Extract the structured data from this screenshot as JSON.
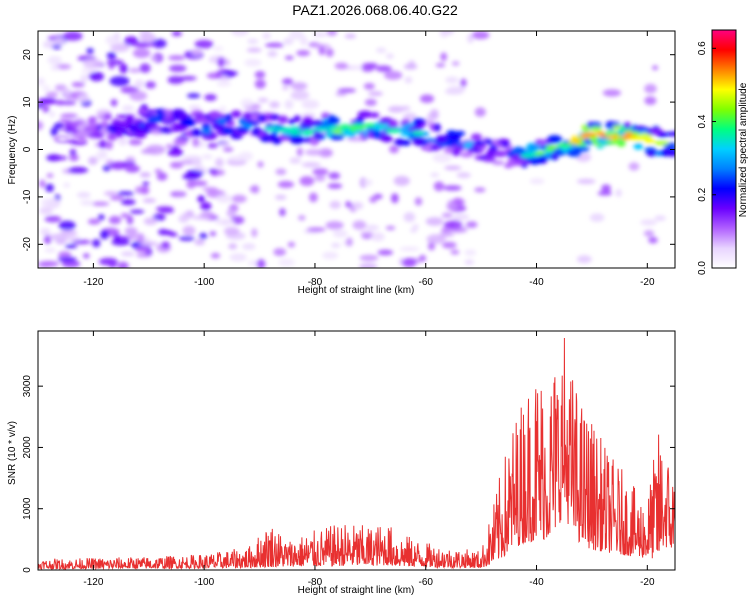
{
  "page": {
    "title": "PAZ1.2026.068.06.40.G22"
  },
  "chart_data": [
    {
      "type": "heatmap",
      "title": "PAZ1.2026.068.06.40.G22",
      "xlabel": "Height of straight line (km)",
      "ylabel": "Frequency (Hz)",
      "xlim": [
        -130,
        -15
      ],
      "ylim": [
        -25,
        25
      ],
      "x_ticks": [
        -120,
        -100,
        -80,
        -60,
        -40,
        -20
      ],
      "y_ticks": [
        -20,
        -10,
        0,
        10,
        20
      ],
      "colorbar": {
        "label": "Normalized spectral amplitude",
        "range": [
          0.0,
          0.65
        ],
        "ticks": [
          0.0,
          0.2,
          0.4,
          0.6
        ],
        "colormap": [
          "#ffffff",
          "#e8d4ff",
          "#b060ff",
          "#6a00ff",
          "#0000ff",
          "#0080ff",
          "#00d0ff",
          "#00ff80",
          "#80ff00",
          "#ffff00",
          "#ff8000",
          "#ff0000",
          "#ff0080"
        ]
      },
      "ridge": {
        "x": [
          -125,
          -115,
          -108,
          -100,
          -92,
          -85,
          -80,
          -75,
          -70,
          -65,
          -60,
          -55,
          -50,
          -45,
          -40,
          -35,
          -30,
          -25,
          -20,
          -15
        ],
        "freq": [
          4,
          5,
          6,
          5,
          5,
          4,
          4,
          4.5,
          5,
          4,
          3,
          2,
          0,
          -1,
          -1,
          1,
          3,
          3,
          2,
          1
        ],
        "amplitude": [
          0.15,
          0.22,
          0.3,
          0.32,
          0.3,
          0.38,
          0.35,
          0.45,
          0.4,
          0.36,
          0.34,
          0.3,
          0.32,
          0.3,
          0.4,
          0.45,
          0.62,
          0.6,
          0.55,
          0.35
        ]
      }
    },
    {
      "type": "line",
      "xlabel": "Height of straight line (km)",
      "ylabel": "SNR (10 * v/v)",
      "xlim": [
        -130,
        -15
      ],
      "ylim": [
        0,
        3900
      ],
      "x_ticks": [
        -120,
        -100,
        -80,
        -60,
        -40,
        -20
      ],
      "y_ticks": [
        0,
        1000,
        2000,
        3000
      ],
      "line_color": "#e83030",
      "envelope": {
        "x": [
          -130,
          -120,
          -110,
          -100,
          -92,
          -88,
          -85,
          -80,
          -75,
          -70,
          -67,
          -65,
          -60,
          -55,
          -50,
          -48,
          -46,
          -44,
          -42,
          -40,
          -38,
          -36,
          -35,
          -34,
          -32,
          -30,
          -28,
          -26,
          -24,
          -22,
          -20,
          -18,
          -17,
          -16,
          -15
        ],
        "base": [
          60,
          70,
          80,
          90,
          120,
          160,
          180,
          200,
          220,
          220,
          260,
          200,
          160,
          120,
          110,
          300,
          700,
          1200,
          1500,
          1600,
          1700,
          2400,
          3200,
          2200,
          1400,
          1100,
          1000,
          900,
          800,
          700,
          650,
          600,
          1300,
          1100,
          1000
        ],
        "peak": [
          180,
          200,
          220,
          260,
          380,
          800,
          500,
          650,
          780,
          720,
          780,
          620,
          450,
          360,
          320,
          1000,
          1800,
          2500,
          3000,
          3400,
          3200,
          3700,
          3950,
          3400,
          2800,
          2500,
          2100,
          1800,
          1600,
          1300,
          1200,
          2300,
          2200,
          1800,
          1650
        ]
      }
    }
  ]
}
